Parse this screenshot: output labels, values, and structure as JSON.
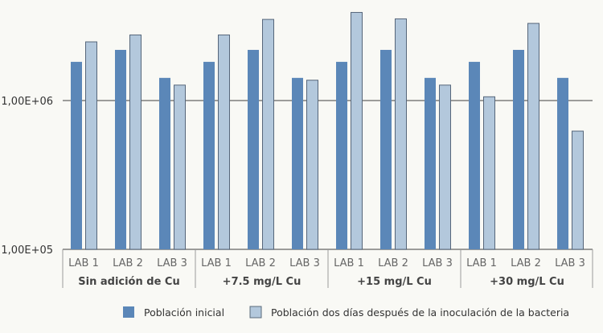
{
  "chart_data": {
    "type": "bar",
    "title": "",
    "xlabel": "",
    "ylabel": "",
    "yscale": "log",
    "ylim": [
      100000,
      4500000
    ],
    "yticks": [
      {
        "value": 100000,
        "label": "1,00E+05"
      },
      {
        "value": 1000000,
        "label": "1,00E+06"
      }
    ],
    "grid": true,
    "legend_position": "bottom",
    "groups": [
      {
        "label": "Sin adición de Cu",
        "categories": [
          "LAB 1",
          "LAB 2",
          "LAB 3"
        ]
      },
      {
        "label": "+7.5 mg/L Cu",
        "categories": [
          "LAB 1",
          "LAB 2",
          "LAB 3"
        ]
      },
      {
        "label": "+15 mg/L Cu",
        "categories": [
          "LAB 1",
          "LAB 2",
          "LAB 3"
        ]
      },
      {
        "label": "+30 mg/L Cu",
        "categories": [
          "LAB 1",
          "LAB 2",
          "LAB 3"
        ]
      }
    ],
    "series": [
      {
        "name": "Población inicial",
        "color": "#5b87b8",
        "values": [
          1820000,
          2190000,
          1420000,
          1820000,
          2190000,
          1420000,
          1820000,
          2190000,
          1420000,
          1820000,
          2190000,
          1420000
        ]
      },
      {
        "name": "Población dos días después de la inoculación de la bacteria",
        "color": "#b3c8dc",
        "values": [
          2480000,
          2760000,
          1270000,
          2760000,
          3510000,
          1370000,
          3910000,
          3540000,
          1270000,
          1060000,
          3300000,
          623000
        ]
      }
    ]
  }
}
